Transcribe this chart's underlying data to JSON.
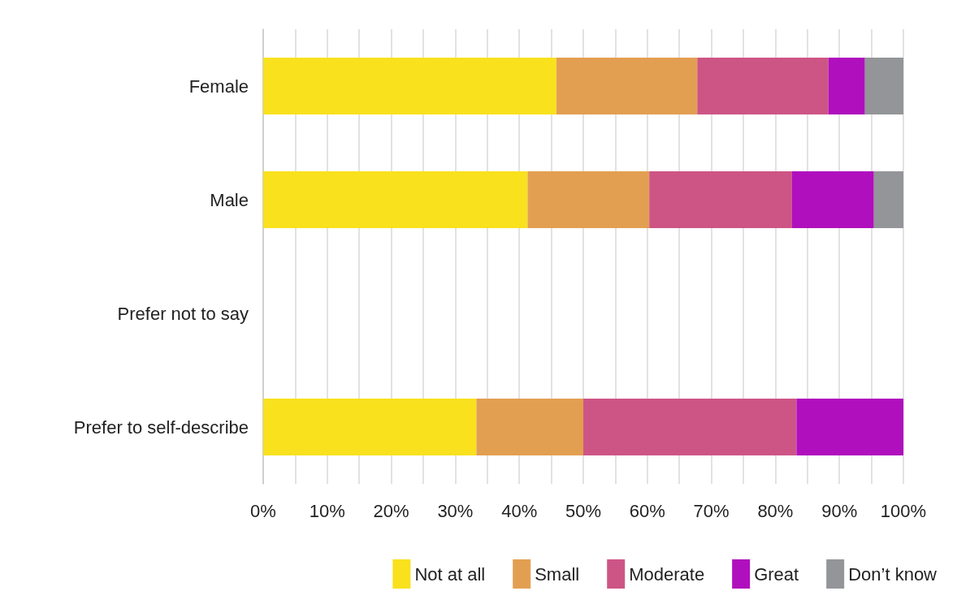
{
  "chart_data": {
    "type": "bar",
    "orientation": "horizontal",
    "stacked": true,
    "categories": [
      "Female",
      "Male",
      "Prefer not to say",
      "Prefer to self-describe"
    ],
    "series": [
      {
        "name": "Not at all",
        "color": "#f9e11e",
        "values": [
          45.8,
          41.3,
          null,
          33.3
        ]
      },
      {
        "name": "Small",
        "color": "#e39f51",
        "values": [
          22.0,
          19.0,
          null,
          16.7
        ]
      },
      {
        "name": "Moderate",
        "color": "#cd5586",
        "values": [
          20.5,
          22.3,
          null,
          33.3
        ]
      },
      {
        "name": "Great",
        "color": "#b00fbd",
        "values": [
          5.7,
          12.8,
          null,
          16.7
        ]
      },
      {
        "name": "Don’t know",
        "color": "#939598",
        "values": [
          6.0,
          4.6,
          null,
          null
        ]
      }
    ],
    "xlim": [
      0,
      100
    ],
    "xticks": [
      {
        "value": 0,
        "label": "0%"
      },
      {
        "value": 5,
        "label": null
      },
      {
        "value": 10,
        "label": "10%"
      },
      {
        "value": 15,
        "label": null
      },
      {
        "value": 20,
        "label": "20%"
      },
      {
        "value": 25,
        "label": null
      },
      {
        "value": 30,
        "label": "30%"
      },
      {
        "value": 35,
        "label": null
      },
      {
        "value": 40,
        "label": "40%"
      },
      {
        "value": 45,
        "label": null
      },
      {
        "value": 50,
        "label": "50%"
      },
      {
        "value": 55,
        "label": null
      },
      {
        "value": 60,
        "label": "60%"
      },
      {
        "value": 65,
        "label": null
      },
      {
        "value": 70,
        "label": "70%"
      },
      {
        "value": 75,
        "label": null
      },
      {
        "value": 80,
        "label": "80%"
      },
      {
        "value": 85,
        "label": null
      },
      {
        "value": 90,
        "label": "90%"
      },
      {
        "value": 95,
        "label": null
      },
      {
        "value": 100,
        "label": "100%"
      }
    ],
    "grid": "x",
    "legend": "bottom"
  }
}
